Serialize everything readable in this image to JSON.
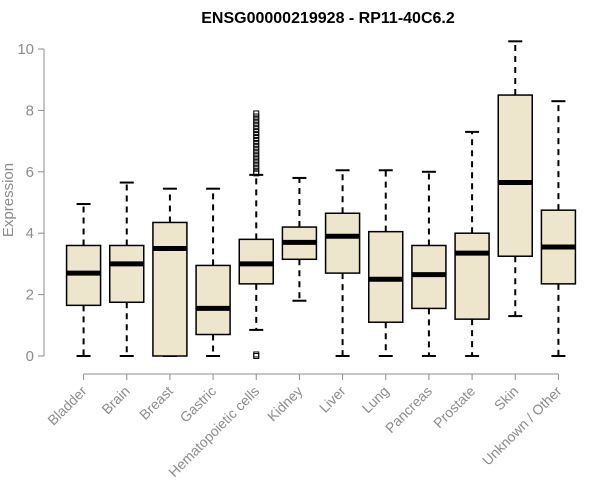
{
  "chart_data": {
    "type": "boxplot",
    "title": "ENSG00000219928 - RP11-40C6.2",
    "xlabel": "",
    "ylabel": "Expression",
    "ylim": [
      0,
      10
    ],
    "yticks": [
      0,
      2,
      4,
      6,
      8,
      10
    ],
    "categories": [
      "Bladder",
      "Brain",
      "Breast",
      "Gastric",
      "Hematopoietic cells",
      "Kidney",
      "Liver",
      "Lung",
      "Pancreas",
      "Prostate",
      "Skin",
      "Unknown / Other"
    ],
    "boxes": [
      {
        "min": 0,
        "q1": 1.65,
        "median": 2.7,
        "q3": 3.6,
        "max": 4.95,
        "outliers": []
      },
      {
        "min": 0,
        "q1": 1.75,
        "median": 3.0,
        "q3": 3.6,
        "max": 5.65,
        "outliers": []
      },
      {
        "min": 0,
        "q1": 0,
        "median": 3.5,
        "q3": 4.35,
        "max": 5.45,
        "outliers": []
      },
      {
        "min": 0,
        "q1": 0.7,
        "median": 1.55,
        "q3": 2.95,
        "max": 5.45,
        "outliers": []
      },
      {
        "min": 0.85,
        "q1": 2.35,
        "median": 3.0,
        "q3": 3.8,
        "max": 5.9,
        "outliers": [
          0,
          0.05,
          5.95,
          6.0,
          6.1,
          6.2,
          6.3,
          6.4,
          6.5,
          6.6,
          6.7,
          6.8,
          6.9,
          7.0,
          7.1,
          7.2,
          7.3,
          7.4,
          7.5,
          7.6,
          7.7,
          7.8,
          7.9
        ]
      },
      {
        "min": 1.8,
        "q1": 3.15,
        "median": 3.7,
        "q3": 4.2,
        "max": 5.8,
        "outliers": []
      },
      {
        "min": 0,
        "q1": 2.7,
        "median": 3.9,
        "q3": 4.65,
        "max": 6.05,
        "outliers": []
      },
      {
        "min": 0,
        "q1": 1.1,
        "median": 2.5,
        "q3": 4.05,
        "max": 6.05,
        "outliers": []
      },
      {
        "min": 0,
        "q1": 1.55,
        "median": 2.65,
        "q3": 3.6,
        "max": 6.0,
        "outliers": []
      },
      {
        "min": 0,
        "q1": 1.2,
        "median": 3.35,
        "q3": 4.0,
        "max": 7.3,
        "outliers": []
      },
      {
        "min": 1.3,
        "q1": 3.25,
        "median": 5.65,
        "q3": 8.5,
        "max": 10.25,
        "outliers": []
      },
      {
        "min": 0,
        "q1": 2.35,
        "median": 3.55,
        "q3": 4.75,
        "max": 8.3,
        "outliers": []
      }
    ]
  }
}
